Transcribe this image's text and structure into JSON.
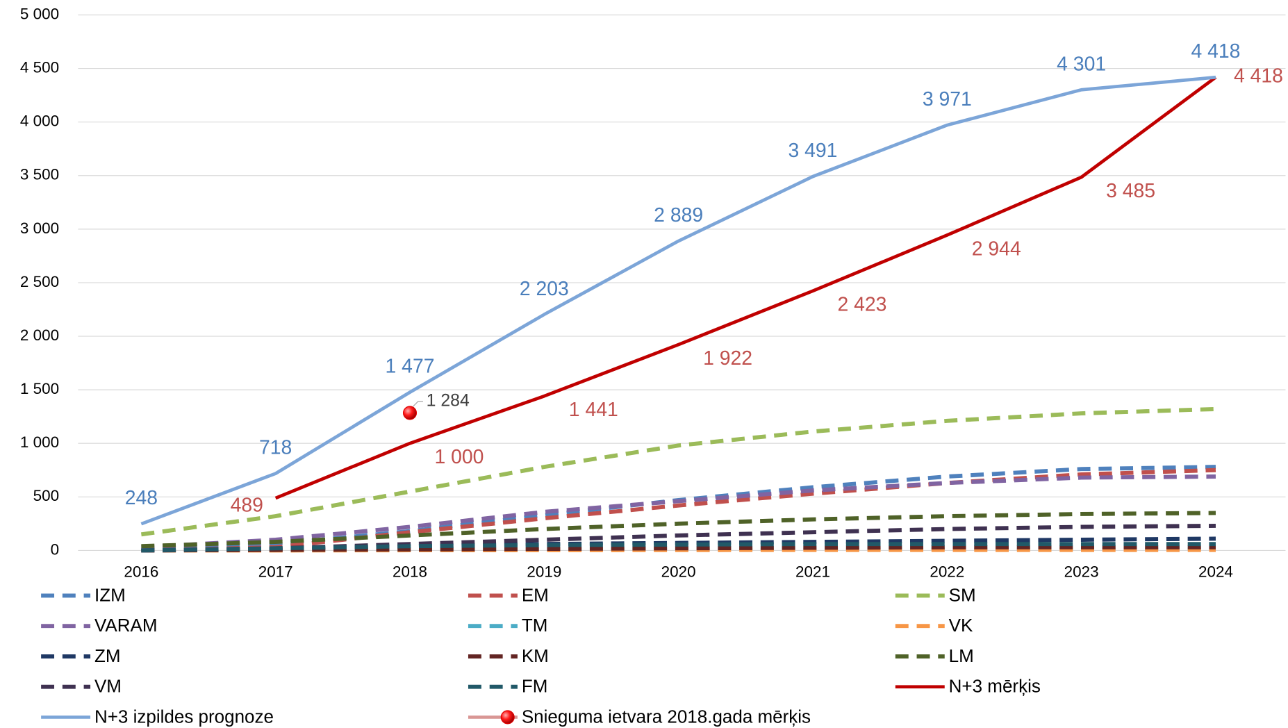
{
  "chart_data": {
    "type": "line",
    "categories": [
      "2016",
      "2017",
      "2018",
      "2019",
      "2020",
      "2021",
      "2022",
      "2023",
      "2024"
    ],
    "ylim": [
      0,
      5000
    ],
    "yticks": [
      0,
      500,
      {
        "value": 1000,
        "label": "1 000"
      },
      {
        "value": 1500,
        "label": "1 500"
      },
      {
        "value": 2000,
        "label": "2 000"
      },
      {
        "value": 2500,
        "label": "2 500"
      },
      {
        "value": 3000,
        "label": "3 000"
      },
      {
        "value": 3500,
        "label": "3 500"
      },
      {
        "value": 4000,
        "label": "4 000"
      },
      {
        "value": 4500,
        "label": "4 500"
      },
      {
        "value": 5000,
        "label": "5 000"
      }
    ],
    "grid": true,
    "legend": "bottom",
    "series": [
      {
        "name": "IZM",
        "color": "#4f81bd",
        "style": "dashed",
        "values": [
          10,
          60,
          180,
          330,
          470,
          590,
          690,
          760,
          780
        ]
      },
      {
        "name": "EM",
        "color": "#c0504d",
        "style": "dashed",
        "values": [
          0,
          30,
          170,
          300,
          420,
          530,
          630,
          710,
          750
        ]
      },
      {
        "name": "SM",
        "color": "#9bbb59",
        "style": "dashed",
        "values": [
          150,
          320,
          550,
          780,
          980,
          1110,
          1210,
          1280,
          1320
        ]
      },
      {
        "name": "VARAM",
        "color": "#8064a2",
        "style": "dashed",
        "values": [
          30,
          100,
          220,
          360,
          460,
          560,
          630,
          680,
          690
        ]
      },
      {
        "name": "TM",
        "color": "#4bacc6",
        "style": "dashed",
        "values": [
          0,
          5,
          10,
          15,
          20,
          20,
          20,
          20,
          20
        ]
      },
      {
        "name": "VK",
        "color": "#f79646",
        "style": "dashed",
        "values": [
          0,
          0,
          2,
          3,
          4,
          5,
          5,
          5,
          5
        ]
      },
      {
        "name": "ZM",
        "color": "#1f3864",
        "style": "dashed",
        "values": [
          0,
          10,
          40,
          60,
          70,
          80,
          90,
          100,
          110
        ]
      },
      {
        "name": "KM",
        "color": "#632523",
        "style": "dashed",
        "values": [
          0,
          5,
          10,
          15,
          20,
          25,
          30,
          30,
          30
        ]
      },
      {
        "name": "LM",
        "color": "#4f6228",
        "style": "dashed",
        "values": [
          40,
          80,
          140,
          200,
          250,
          290,
          320,
          340,
          350
        ]
      },
      {
        "name": "VM",
        "color": "#3f3151",
        "style": "dashed",
        "values": [
          0,
          20,
          60,
          100,
          140,
          170,
          200,
          220,
          230
        ]
      },
      {
        "name": "FM",
        "color": "#215968",
        "style": "dashed",
        "values": [
          0,
          20,
          40,
          50,
          55,
          60,
          60,
          60,
          60
        ]
      },
      {
        "name": "N+3 mērķis",
        "color": "#c00000",
        "label_color": "#c0504d",
        "style": "solid",
        "values": [
          null,
          489,
          1000,
          1441,
          1922,
          2423,
          2944,
          3485,
          4418
        ],
        "value_labels": [
          null,
          "489",
          "1 000",
          "1 441",
          "1 922",
          "2 423",
          "2 944",
          "3 485",
          "4 418"
        ]
      },
      {
        "name": "N+3 izpildes prognoze",
        "color": "#7ca5d8",
        "label_color": "#4a7ebb",
        "style": "solid",
        "values": [
          248,
          718,
          1477,
          2203,
          2889,
          3491,
          3971,
          4301,
          4418
        ],
        "value_labels": [
          "248",
          "718",
          "1 477",
          "2 203",
          "2 889",
          "3 491",
          "3 971",
          "4 301",
          "4 418"
        ]
      },
      {
        "name": "Snieguma ietvara 2018.gada mērķis",
        "color": "#d99694",
        "marker_color": "#e00000",
        "label_color": "#404040",
        "style": "marker",
        "values": [
          null,
          null,
          1284,
          null,
          null,
          null,
          null,
          null,
          null
        ],
        "value_labels": [
          null,
          null,
          "1 284",
          null,
          null,
          null,
          null,
          null,
          null
        ]
      }
    ]
  }
}
